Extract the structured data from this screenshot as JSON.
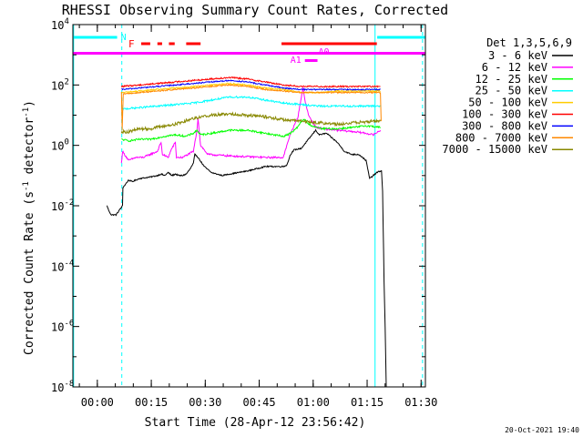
{
  "chart_data": {
    "type": "line",
    "title": "RHESSI Observing Summary Count Rates, Corrected",
    "xlabel": "Start Time (28-Apr-12 23:56:42)",
    "ylabel": "Corrected Count Rate (s⁻¹ detector⁻¹)",
    "ylabel_parts": {
      "main": "Corrected Count Rate (s",
      "sup1": "-1",
      "mid": " detector",
      "sup2": "-1",
      "end": ")"
    },
    "yscale": "log",
    "ylim": [
      1e-08,
      10000.0
    ],
    "xlim_minutes": [
      -3.5,
      94.5
    ],
    "x_ticks": [
      {
        "label": "00:00",
        "min": 3.3
      },
      {
        "label": "00:15",
        "min": 18.3
      },
      {
        "label": "00:30",
        "min": 33.3
      },
      {
        "label": "00:45",
        "min": 48.3
      },
      {
        "label": "01:00",
        "min": 63.3
      },
      {
        "label": "01:15",
        "min": 78.3
      },
      {
        "label": "01:30",
        "min": 93.3
      }
    ],
    "y_ticks": [
      {
        "base": "10",
        "exp": "4",
        "value": 4
      },
      {
        "base": "10",
        "exp": "2",
        "value": 2
      },
      {
        "base": "10",
        "exp": "0",
        "value": 0
      },
      {
        "base": "10",
        "exp": "-2",
        "value": -2
      },
      {
        "base": "10",
        "exp": "-4",
        "value": -4
      },
      {
        "base": "10",
        "exp": "-6",
        "value": -6
      },
      {
        "base": "10",
        "exp": "-8",
        "value": -8
      }
    ],
    "legend": {
      "placement": "right",
      "header": "Det 1,3,5,6,9",
      "entries": [
        {
          "label": "3 - 6 keV",
          "color": "#000000"
        },
        {
          "label": "6 - 12 keV",
          "color": "#ff00ff"
        },
        {
          "label": "12 - 25 keV",
          "color": "#00ff00"
        },
        {
          "label": "25 - 50 keV",
          "color": "#00ffff"
        },
        {
          "label": "50 - 100 keV",
          "color": "#ffcc00"
        },
        {
          "label": "100 - 300 keV",
          "color": "#ff0000"
        },
        {
          "label": "300 - 800 keV",
          "color": "#0000ff"
        },
        {
          "label": "800 - 7000 keV",
          "color": "#ff8800"
        },
        {
          "label": "7000 - 15000 keV",
          "color": "#888800"
        }
      ]
    },
    "series": [
      {
        "name": "3 - 6 keV",
        "color": "#000000",
        "noise": 0.02,
        "points": [
          [
            6,
            -2.0
          ],
          [
            6.6,
            -2.2
          ],
          [
            7.2,
            -2.3
          ],
          [
            8.5,
            -2.3
          ],
          [
            10.3,
            -2.0
          ],
          [
            10.4,
            -1.4
          ],
          [
            12,
            -1.15
          ],
          [
            13,
            -1.2
          ],
          [
            15,
            -1.1
          ],
          [
            18,
            -1.05
          ],
          [
            20,
            -1.0
          ],
          [
            21,
            -0.95
          ],
          [
            22,
            -1.0
          ],
          [
            23,
            -0.9
          ],
          [
            24,
            -1.0
          ],
          [
            25,
            -0.95
          ],
          [
            26,
            -1.0
          ],
          [
            27,
            -1.0
          ],
          [
            28,
            -0.95
          ],
          [
            29,
            -0.8
          ],
          [
            30,
            -0.6
          ],
          [
            30.4,
            -0.3
          ],
          [
            31,
            -0.35
          ],
          [
            33,
            -0.7
          ],
          [
            35,
            -0.9
          ],
          [
            38,
            -1.0
          ],
          [
            40,
            -0.95
          ],
          [
            45,
            -0.85
          ],
          [
            50,
            -0.7
          ],
          [
            55,
            -0.7
          ],
          [
            56,
            -0.65
          ],
          [
            57,
            -0.3
          ],
          [
            58,
            -0.15
          ],
          [
            60,
            -0.1
          ],
          [
            62,
            0.2
          ],
          [
            64,
            0.5
          ],
          [
            65,
            0.35
          ],
          [
            67,
            0.4
          ],
          [
            70,
            0.1
          ],
          [
            72,
            -0.2
          ],
          [
            74,
            -0.3
          ],
          [
            76,
            -0.3
          ],
          [
            77,
            -0.4
          ],
          [
            78,
            -0.5
          ],
          [
            79,
            -1.1
          ],
          [
            81,
            -0.9
          ],
          [
            82,
            -0.85
          ],
          [
            82.3,
            -0.85
          ],
          [
            82.6,
            -1.5
          ],
          [
            83,
            -4.5
          ],
          [
            83.3,
            -6
          ],
          [
            83.6,
            -8.0
          ]
        ]
      },
      {
        "name": "6 - 12 keV",
        "color": "#ff00ff",
        "noise": 0.03,
        "points": [
          [
            10,
            -0.6
          ],
          [
            10.3,
            -0.2
          ],
          [
            12,
            -0.5
          ],
          [
            14,
            -0.4
          ],
          [
            16,
            -0.4
          ],
          [
            18,
            -0.3
          ],
          [
            20,
            -0.2
          ],
          [
            21,
            0.1
          ],
          [
            21.4,
            -0.3
          ],
          [
            23,
            -0.4
          ],
          [
            24,
            -0.1
          ],
          [
            25,
            0.1
          ],
          [
            25.3,
            -0.4
          ],
          [
            27,
            -0.4
          ],
          [
            30,
            -0.2
          ],
          [
            31,
            0.5
          ],
          [
            31.3,
            0.9
          ],
          [
            32,
            0.0
          ],
          [
            34,
            -0.3
          ],
          [
            40,
            -0.35
          ],
          [
            50,
            -0.4
          ],
          [
            55,
            -0.4
          ],
          [
            57,
            0.4
          ],
          [
            59,
            0.9
          ],
          [
            60,
            1.6
          ],
          [
            60.5,
            1.9
          ],
          [
            61,
            1.5
          ],
          [
            62,
            1.0
          ],
          [
            64,
            0.6
          ],
          [
            66,
            0.55
          ],
          [
            70,
            0.5
          ],
          [
            75,
            0.45
          ],
          [
            78,
            0.4
          ],
          [
            80,
            0.35
          ],
          [
            82,
            0.5
          ]
        ]
      },
      {
        "name": "12 - 25 keV",
        "color": "#00ff00",
        "noise": 0.03,
        "points": [
          [
            10,
            0.2
          ],
          [
            12,
            0.15
          ],
          [
            15,
            0.2
          ],
          [
            18,
            0.2
          ],
          [
            20,
            0.25
          ],
          [
            22,
            0.3
          ],
          [
            25,
            0.35
          ],
          [
            28,
            0.3
          ],
          [
            30,
            0.4
          ],
          [
            31,
            0.5
          ],
          [
            32,
            0.35
          ],
          [
            35,
            0.4
          ],
          [
            40,
            0.5
          ],
          [
            45,
            0.5
          ],
          [
            50,
            0.4
          ],
          [
            55,
            0.3
          ],
          [
            57,
            0.4
          ],
          [
            59,
            0.6
          ],
          [
            60,
            0.8
          ],
          [
            61,
            0.85
          ],
          [
            62,
            0.7
          ],
          [
            64,
            0.6
          ],
          [
            66,
            0.55
          ],
          [
            70,
            0.55
          ],
          [
            75,
            0.6
          ],
          [
            78,
            0.65
          ],
          [
            82,
            0.6
          ]
        ]
      },
      {
        "name": "25 - 50 keV",
        "color": "#00ffff",
        "noise": 0.03,
        "points": [
          [
            10,
            1.2
          ],
          [
            15,
            1.25
          ],
          [
            20,
            1.3
          ],
          [
            25,
            1.35
          ],
          [
            30,
            1.4
          ],
          [
            35,
            1.5
          ],
          [
            40,
            1.6
          ],
          [
            45,
            1.6
          ],
          [
            50,
            1.5
          ],
          [
            55,
            1.4
          ],
          [
            60,
            1.35
          ],
          [
            65,
            1.3
          ],
          [
            70,
            1.3
          ],
          [
            75,
            1.3
          ],
          [
            80,
            1.3
          ],
          [
            82,
            1.3
          ]
        ]
      },
      {
        "name": "50 - 100 keV",
        "color": "#ffcc00",
        "noise": 0.02,
        "points": [
          [
            10,
            1.75
          ],
          [
            15,
            1.8
          ],
          [
            20,
            1.85
          ],
          [
            25,
            1.9
          ],
          [
            30,
            1.95
          ],
          [
            35,
            2.0
          ],
          [
            40,
            2.05
          ],
          [
            45,
            2.0
          ],
          [
            50,
            1.9
          ],
          [
            55,
            1.85
          ],
          [
            60,
            1.75
          ],
          [
            65,
            1.75
          ],
          [
            70,
            1.8
          ],
          [
            75,
            1.8
          ],
          [
            80,
            1.8
          ],
          [
            82,
            1.8
          ]
        ]
      },
      {
        "name": "100 - 300 keV",
        "color": "#ff0000",
        "noise": 0.025,
        "points": [
          [
            10,
            1.95
          ],
          [
            15,
            2.0
          ],
          [
            20,
            2.05
          ],
          [
            25,
            2.1
          ],
          [
            30,
            2.15
          ],
          [
            35,
            2.2
          ],
          [
            40,
            2.25
          ],
          [
            45,
            2.2
          ],
          [
            50,
            2.1
          ],
          [
            55,
            2.0
          ],
          [
            60,
            1.95
          ],
          [
            65,
            1.95
          ],
          [
            70,
            1.95
          ],
          [
            75,
            1.95
          ],
          [
            80,
            1.95
          ],
          [
            82,
            1.95
          ]
        ]
      },
      {
        "name": "300 - 800 keV",
        "color": "#0000ff",
        "noise": 0.02,
        "points": [
          [
            10,
            1.85
          ],
          [
            15,
            1.9
          ],
          [
            20,
            1.95
          ],
          [
            25,
            2.0
          ],
          [
            30,
            2.05
          ],
          [
            35,
            2.1
          ],
          [
            40,
            2.15
          ],
          [
            45,
            2.1
          ],
          [
            50,
            2.0
          ],
          [
            55,
            1.9
          ],
          [
            60,
            1.85
          ],
          [
            65,
            1.85
          ],
          [
            70,
            1.85
          ],
          [
            75,
            1.85
          ],
          [
            80,
            1.85
          ],
          [
            82,
            1.85
          ]
        ]
      },
      {
        "name": "800 - 7000 keV",
        "color": "#ff8800",
        "noise": 0.02,
        "points": [
          [
            10,
            1.75
          ],
          [
            10.2,
            0.5
          ],
          [
            10.5,
            1.7
          ],
          [
            15,
            1.75
          ],
          [
            20,
            1.8
          ],
          [
            25,
            1.85
          ],
          [
            30,
            1.9
          ],
          [
            35,
            1.95
          ],
          [
            40,
            2.0
          ],
          [
            45,
            1.95
          ],
          [
            50,
            1.85
          ],
          [
            55,
            1.8
          ],
          [
            60,
            1.75
          ],
          [
            65,
            1.75
          ],
          [
            70,
            1.75
          ],
          [
            75,
            1.75
          ],
          [
            80,
            1.75
          ],
          [
            82,
            1.75
          ],
          [
            82.2,
            0.8
          ]
        ]
      },
      {
        "name": "7000 - 15000 keV",
        "color": "#888800",
        "noise": 0.05,
        "points": [
          [
            10,
            0.45
          ],
          [
            12,
            0.45
          ],
          [
            15,
            0.55
          ],
          [
            18,
            0.55
          ],
          [
            20,
            0.6
          ],
          [
            25,
            0.7
          ],
          [
            30,
            0.9
          ],
          [
            35,
            1.0
          ],
          [
            40,
            1.05
          ],
          [
            45,
            1.0
          ],
          [
            50,
            0.95
          ],
          [
            55,
            0.85
          ],
          [
            60,
            0.8
          ],
          [
            65,
            0.75
          ],
          [
            70,
            0.7
          ],
          [
            75,
            0.75
          ],
          [
            80,
            0.8
          ],
          [
            82,
            0.8
          ]
        ]
      }
    ],
    "annotations": {
      "night_label": "N",
      "flare_label": "F",
      "attenuator_labels": [
        "A0",
        "A1"
      ],
      "night_color": "#00ffff",
      "flare_color": "#ff0000",
      "attenuator_color": "#ff00ff",
      "night_bars": [
        [
          -3.5,
          8.8
        ],
        [
          81.1,
          94.5
        ]
      ],
      "night_lines": [
        -3.3,
        10.1,
        80.5,
        93.7
      ],
      "flare_dashes": [
        [
          15.5,
          18.0
        ],
        [
          20.0,
          21.3
        ],
        [
          23.2,
          24.8
        ],
        [
          28.0,
          32.0
        ],
        [
          54.5,
          81.0
        ]
      ],
      "attenuator_full": [
        -3.5,
        94.5
      ],
      "attenuator_a1": [
        61.0,
        64.5
      ]
    },
    "timestamp": "20-Oct-2021 19:40"
  }
}
